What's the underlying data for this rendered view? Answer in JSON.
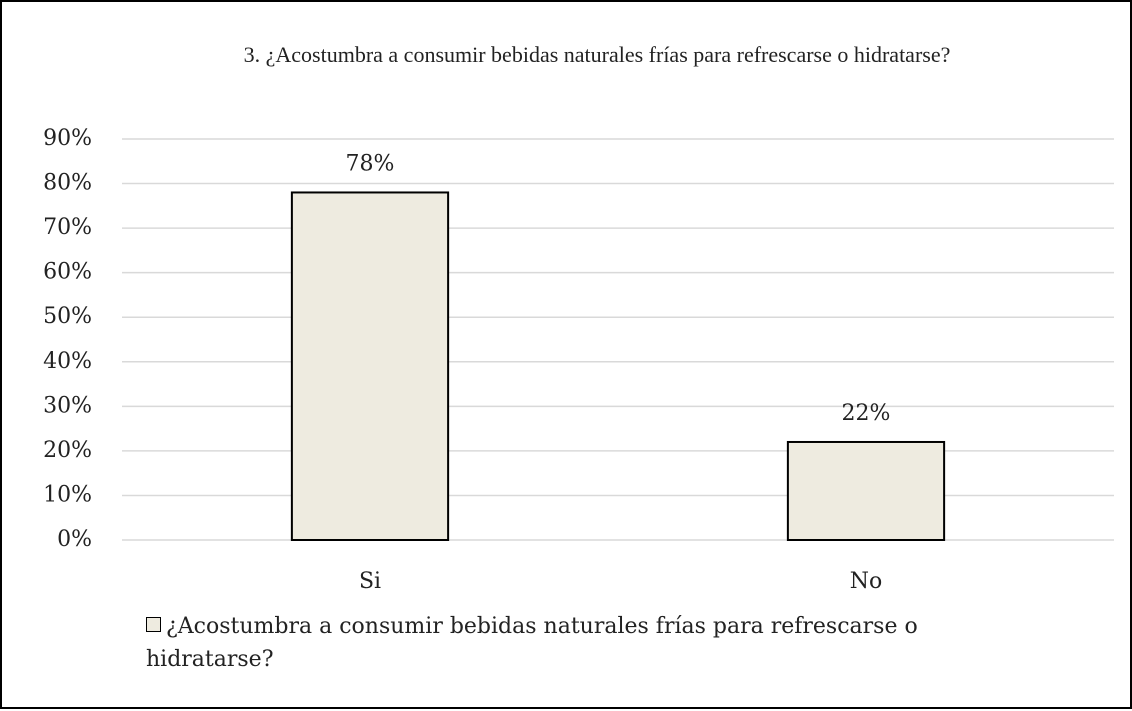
{
  "chart_data": {
    "type": "bar",
    "title": "3. ¿Acostumbra a consumir bebidas naturales frías para refrescarse o hidratarse?",
    "categories": [
      "Si",
      "No"
    ],
    "series": [
      {
        "name": "¿Acostumbra a consumir bebidas naturales frías para refrescarse o hidratarse?",
        "color": "#eeebe0",
        "values": [
          78,
          22
        ],
        "value_labels": [
          "78%",
          "22%"
        ]
      }
    ],
    "ylim": [
      0,
      90
    ],
    "yticks": [
      {
        "value": 0,
        "label": "0%"
      },
      {
        "value": 10,
        "label": "10%"
      },
      {
        "value": 20,
        "label": "20%"
      },
      {
        "value": 30,
        "label": "30%"
      },
      {
        "value": 40,
        "label": "40%"
      },
      {
        "value": 50,
        "label": "50%"
      },
      {
        "value": 60,
        "label": "60%"
      },
      {
        "value": 70,
        "label": "70%"
      },
      {
        "value": 80,
        "label": "80%"
      },
      {
        "value": 90,
        "label": "90%"
      }
    ],
    "grid": true,
    "legend": "bottom"
  }
}
